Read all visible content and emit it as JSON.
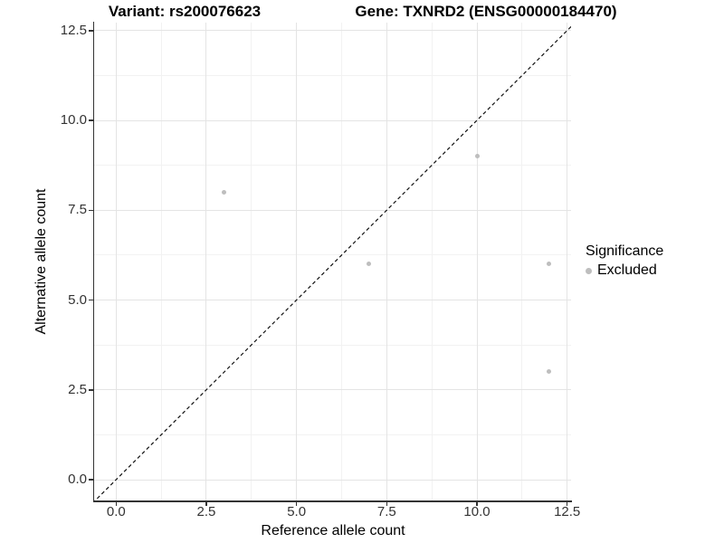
{
  "titles": {
    "variant": "Variant: rs200076623",
    "gene": "Gene: TXNRD2 (ENSG00000184470)"
  },
  "axes": {
    "x": {
      "title": "Reference allele count",
      "tick_labels": [
        "0.0",
        "2.5",
        "5.0",
        "7.5",
        "10.0",
        "12.5"
      ],
      "tick_values": [
        0,
        2.5,
        5,
        7.5,
        10,
        12.5
      ],
      "minor_tick_values": [
        1.25,
        3.75,
        6.25,
        8.75,
        11.25
      ]
    },
    "y": {
      "title": "Alternative allele count",
      "tick_labels": [
        "0.0",
        "2.5",
        "5.0",
        "7.5",
        "10.0",
        "12.5"
      ],
      "tick_values": [
        0,
        2.5,
        5,
        7.5,
        10,
        12.5
      ],
      "minor_tick_values": [
        1.25,
        3.75,
        6.25,
        8.75,
        11.25
      ]
    }
  },
  "legend": {
    "title": "Significance",
    "items": [
      {
        "label": "Excluded",
        "marker_color": "#bebebe"
      }
    ]
  },
  "colors": {
    "background": "#ffffff",
    "axis_line": "#333333",
    "tick_label": "#333333",
    "grid_major": "#e4e4e4",
    "grid_minor": "#f2f2f2",
    "point": "#bebebe",
    "identity_line": "#111111"
  },
  "chart_data": {
    "type": "scatter",
    "title_left": "Variant: rs200076623",
    "title_right": "Gene: TXNRD2 (ENSG00000184470)",
    "xlabel": "Reference allele count",
    "ylabel": "Alternative allele count",
    "xlim": [
      -0.6,
      12.63
    ],
    "ylim": [
      -0.6,
      12.71
    ],
    "x_ticks": [
      0,
      2.5,
      5,
      7.5,
      10,
      12.5
    ],
    "y_ticks": [
      0,
      2.5,
      5,
      7.5,
      10,
      12.5
    ],
    "grid": "major+minor",
    "legend_position": "right",
    "series": [
      {
        "name": "Excluded",
        "marker": "circle",
        "color": "#bebebe",
        "points": [
          [
            3,
            8
          ],
          [
            7,
            6
          ],
          [
            10,
            9
          ],
          [
            12,
            6
          ],
          [
            12,
            3
          ]
        ]
      }
    ],
    "reference_line": {
      "type": "y=x",
      "style": "dashed",
      "color": "#111111"
    }
  }
}
